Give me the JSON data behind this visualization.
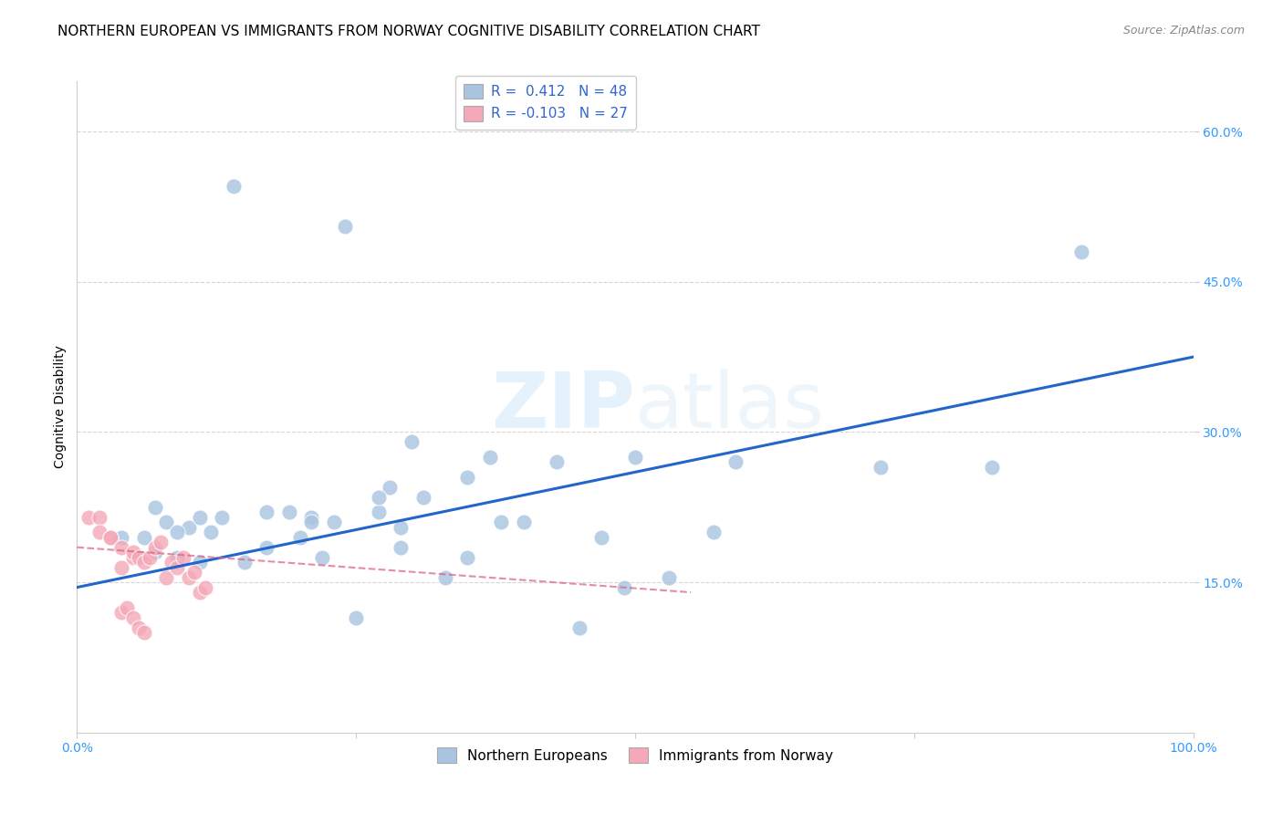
{
  "title": "NORTHERN EUROPEAN VS IMMIGRANTS FROM NORWAY COGNITIVE DISABILITY CORRELATION CHART",
  "source": "Source: ZipAtlas.com",
  "ylabel": "Cognitive Disability",
  "xlabel": "",
  "xlim": [
    0.0,
    1.0
  ],
  "ylim": [
    0.0,
    0.65
  ],
  "x_ticks": [
    0.0,
    0.25,
    0.5,
    0.75,
    1.0
  ],
  "x_tick_labels": [
    "0.0%",
    "",
    "",
    "",
    "100.0%"
  ],
  "y_ticks": [
    0.15,
    0.3,
    0.45,
    0.6
  ],
  "y_tick_labels": [
    "15.0%",
    "30.0%",
    "45.0%",
    "60.0%"
  ],
  "blue_R": 0.412,
  "blue_N": 48,
  "pink_R": -0.103,
  "pink_N": 27,
  "blue_color": "#a8c4e0",
  "blue_line_color": "#2266cc",
  "pink_color": "#f4a8b8",
  "pink_line_color": "#dd6688",
  "watermark_color": "#d0e8f8",
  "background_color": "#ffffff",
  "grid_color": "#cccccc",
  "blue_scatter_x": [
    0.14,
    0.24,
    0.04,
    0.06,
    0.08,
    0.1,
    0.12,
    0.07,
    0.09,
    0.11,
    0.15,
    0.17,
    0.19,
    0.21,
    0.23,
    0.27,
    0.29,
    0.3,
    0.33,
    0.35,
    0.2,
    0.38,
    0.4,
    0.43,
    0.47,
    0.5,
    0.53,
    0.22,
    0.57,
    0.31,
    0.35,
    0.21,
    0.25,
    0.11,
    0.13,
    0.17,
    0.28,
    0.27,
    0.29,
    0.07,
    0.09,
    0.37,
    0.45,
    0.49,
    0.59,
    0.9,
    0.82,
    0.72
  ],
  "blue_scatter_y": [
    0.545,
    0.505,
    0.195,
    0.195,
    0.21,
    0.205,
    0.2,
    0.18,
    0.175,
    0.17,
    0.17,
    0.22,
    0.22,
    0.215,
    0.21,
    0.22,
    0.205,
    0.29,
    0.155,
    0.255,
    0.195,
    0.21,
    0.21,
    0.27,
    0.195,
    0.275,
    0.155,
    0.175,
    0.2,
    0.235,
    0.175,
    0.21,
    0.115,
    0.215,
    0.215,
    0.185,
    0.245,
    0.235,
    0.185,
    0.225,
    0.2,
    0.275,
    0.105,
    0.145,
    0.27,
    0.48,
    0.265,
    0.265
  ],
  "pink_scatter_x": [
    0.01,
    0.02,
    0.02,
    0.03,
    0.03,
    0.04,
    0.04,
    0.05,
    0.05,
    0.055,
    0.06,
    0.065,
    0.07,
    0.075,
    0.08,
    0.085,
    0.09,
    0.095,
    0.1,
    0.105,
    0.11,
    0.115,
    0.04,
    0.045,
    0.05,
    0.055,
    0.06
  ],
  "pink_scatter_y": [
    0.215,
    0.215,
    0.2,
    0.195,
    0.195,
    0.185,
    0.165,
    0.175,
    0.18,
    0.175,
    0.17,
    0.175,
    0.185,
    0.19,
    0.155,
    0.17,
    0.165,
    0.175,
    0.155,
    0.16,
    0.14,
    0.145,
    0.12,
    0.125,
    0.115,
    0.105,
    0.1
  ],
  "blue_line_x": [
    0.0,
    1.0
  ],
  "blue_line_y": [
    0.145,
    0.375
  ],
  "pink_line_x": [
    0.0,
    0.55
  ],
  "pink_line_y": [
    0.185,
    0.14
  ],
  "legend_labels": [
    "Northern Europeans",
    "Immigrants from Norway"
  ],
  "title_fontsize": 11,
  "axis_label_fontsize": 10,
  "tick_fontsize": 10,
  "legend_fontsize": 11,
  "source_fontsize": 9
}
